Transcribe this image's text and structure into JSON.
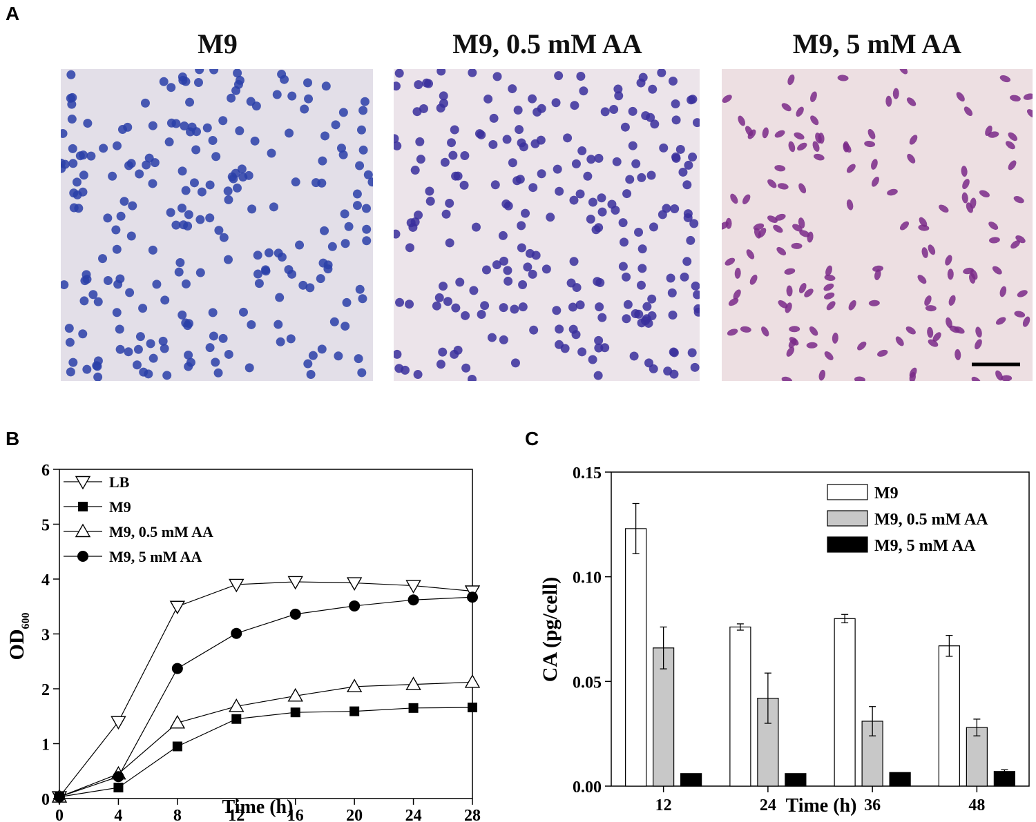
{
  "panels": {
    "a_label": "A",
    "b_label": "B",
    "c_label": "C"
  },
  "micrographs": [
    {
      "title": "M9",
      "stain_color": "#2a3fa8",
      "background": "#e3dfe8"
    },
    {
      "title": "M9, 0.5 mM AA",
      "stain_color": "#3a2f9c",
      "background": "#ece4ea"
    },
    {
      "title": "M9, 5 mM AA",
      "stain_color": "#7a2a88",
      "background": "#eddfe2"
    }
  ],
  "chart_data": [
    {
      "type": "line",
      "xlabel": "Time (h)",
      "ylabel": "OD",
      "ylabel_subscript": "600",
      "xlim": [
        0,
        28
      ],
      "ylim": [
        0,
        6
      ],
      "xticks": [
        "0",
        "4",
        "8",
        "12",
        "16",
        "20",
        "24",
        "28"
      ],
      "yticks": [
        "0",
        "1",
        "2",
        "3",
        "4",
        "5",
        "6"
      ],
      "grid": false,
      "legend_position": "top-left",
      "x": [
        0,
        4,
        8,
        12,
        16,
        20,
        24,
        28
      ],
      "series": [
        {
          "name": "LB",
          "marker": "triangle-down-open",
          "values": [
            0.03,
            1.4,
            3.5,
            3.9,
            3.95,
            3.93,
            3.88,
            3.78
          ]
        },
        {
          "name": "M9",
          "marker": "square-filled",
          "values": [
            0.03,
            0.2,
            0.95,
            1.45,
            1.57,
            1.59,
            1.65,
            1.66
          ]
        },
        {
          "name": "M9, 0.5 mM AA",
          "marker": "triangle-up-open",
          "values": [
            0.03,
            0.45,
            1.38,
            1.68,
            1.87,
            2.04,
            2.08,
            2.12
          ]
        },
        {
          "name": "M9, 5 mM AA",
          "marker": "circle-filled",
          "values": [
            0.03,
            0.4,
            2.37,
            3.01,
            3.36,
            3.51,
            3.62,
            3.67
          ]
        }
      ]
    },
    {
      "type": "bar",
      "xlabel": "Time (h)",
      "ylabel": "CA (pg/cell)",
      "ylim": [
        0,
        0.15
      ],
      "yticks": [
        "0.00",
        "0.05",
        "0.10",
        "0.15"
      ],
      "grid": false,
      "legend_position": "top-right",
      "categories": [
        "12",
        "24",
        "36",
        "48"
      ],
      "series": [
        {
          "name": "M9",
          "fill": "#ffffff",
          "values": [
            0.123,
            0.076,
            0.08,
            0.067
          ],
          "errors": [
            0.012,
            0.0015,
            0.002,
            0.005
          ]
        },
        {
          "name": "M9, 0.5 mM AA",
          "fill": "#c8c8c8",
          "values": [
            0.066,
            0.042,
            0.031,
            0.028
          ],
          "errors": [
            0.01,
            0.012,
            0.007,
            0.004
          ]
        },
        {
          "name": "M9, 5 mM AA",
          "fill": "#000000",
          "values": [
            0.006,
            0.006,
            0.0065,
            0.007
          ],
          "errors": [
            0.0003,
            0.0003,
            0.0005,
            0.0008
          ]
        }
      ]
    }
  ]
}
